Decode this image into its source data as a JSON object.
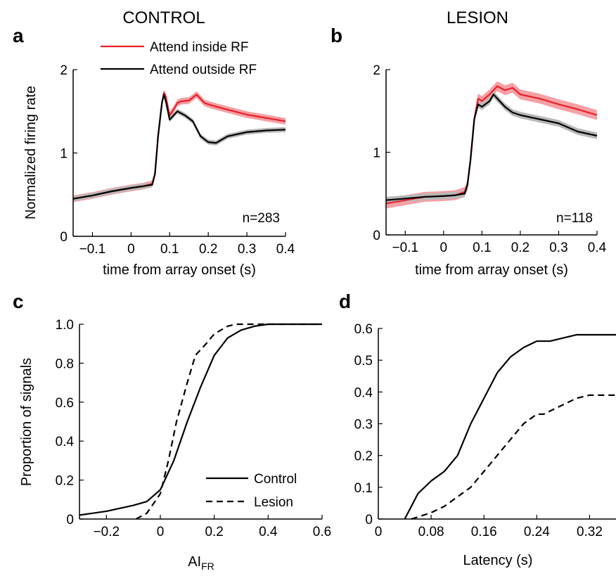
{
  "chart_data": [
    {
      "id": "a",
      "type": "line",
      "panel_label": "a",
      "title": "CONTROL",
      "xlabel": "time from array onset (s)",
      "ylabel": "Normalized firing rate",
      "xlim": [
        -0.15,
        0.4
      ],
      "ylim": [
        0,
        2
      ],
      "xticks": [
        -0.1,
        0,
        0.1,
        0.2,
        0.3,
        0.4
      ],
      "xtick_labels": [
        "−0.1",
        "0",
        "0.1",
        "0.2",
        "0.3",
        "0.4"
      ],
      "yticks": [
        0,
        1,
        2
      ],
      "ytick_labels": [
        "0",
        "1",
        "2"
      ],
      "annotation": "n=283",
      "legend_position": "top-right",
      "series": [
        {
          "name": "Attend inside RF",
          "color": "#e8202a",
          "band_color": "#f4a0a4",
          "band": 0.04,
          "x": [
            -0.15,
            -0.1,
            -0.05,
            0,
            0.03,
            0.055,
            0.062,
            0.07,
            0.08,
            0.085,
            0.09,
            0.1,
            0.11,
            0.12,
            0.13,
            0.15,
            0.17,
            0.19,
            0.21,
            0.25,
            0.3,
            0.35,
            0.4
          ],
          "y": [
            0.45,
            0.49,
            0.54,
            0.58,
            0.6,
            0.63,
            0.75,
            1.2,
            1.6,
            1.72,
            1.68,
            1.45,
            1.52,
            1.6,
            1.62,
            1.63,
            1.7,
            1.6,
            1.57,
            1.52,
            1.46,
            1.42,
            1.38
          ]
        },
        {
          "name": "Attend outside RF",
          "color": "#000000",
          "band_color": "#b8b8b8",
          "band": 0.03,
          "x": [
            -0.15,
            -0.1,
            -0.05,
            0,
            0.03,
            0.055,
            0.062,
            0.07,
            0.08,
            0.085,
            0.09,
            0.1,
            0.11,
            0.12,
            0.14,
            0.16,
            0.18,
            0.2,
            0.22,
            0.25,
            0.3,
            0.35,
            0.4
          ],
          "y": [
            0.45,
            0.49,
            0.54,
            0.58,
            0.6,
            0.62,
            0.75,
            1.2,
            1.6,
            1.7,
            1.62,
            1.4,
            1.45,
            1.5,
            1.45,
            1.38,
            1.2,
            1.13,
            1.12,
            1.2,
            1.25,
            1.27,
            1.28
          ]
        }
      ]
    },
    {
      "id": "b",
      "type": "line",
      "panel_label": "b",
      "title": "LESION",
      "xlabel": "time from array onset (s)",
      "ylabel": "",
      "xlim": [
        -0.15,
        0.4
      ],
      "ylim": [
        0,
        2
      ],
      "xticks": [
        -0.1,
        0,
        0.1,
        0.2,
        0.3,
        0.4
      ],
      "xtick_labels": [
        "−0.1",
        "0",
        "0.1",
        "0.2",
        "0.3",
        "0.4"
      ],
      "yticks": [
        0,
        1,
        2
      ],
      "ytick_labels": [
        "0",
        "1",
        "2"
      ],
      "annotation": "n=118",
      "series": [
        {
          "name": "Attend inside RF",
          "color": "#e8202a",
          "band_color": "#f4a0a4",
          "band": 0.06,
          "x": [
            -0.15,
            -0.1,
            -0.05,
            0,
            0.03,
            0.055,
            0.062,
            0.07,
            0.08,
            0.09,
            0.1,
            0.12,
            0.14,
            0.16,
            0.18,
            0.2,
            0.25,
            0.3,
            0.35,
            0.4
          ],
          "y": [
            0.38,
            0.42,
            0.46,
            0.47,
            0.48,
            0.52,
            0.6,
            0.9,
            1.4,
            1.65,
            1.62,
            1.7,
            1.8,
            1.75,
            1.78,
            1.7,
            1.65,
            1.58,
            1.52,
            1.45
          ]
        },
        {
          "name": "Attend outside RF",
          "color": "#000000",
          "band_color": "#b8b8b8",
          "band": 0.04,
          "x": [
            -0.15,
            -0.1,
            -0.05,
            0,
            0.03,
            0.055,
            0.062,
            0.07,
            0.08,
            0.09,
            0.1,
            0.12,
            0.13,
            0.14,
            0.16,
            0.18,
            0.2,
            0.25,
            0.3,
            0.35,
            0.4
          ],
          "y": [
            0.42,
            0.44,
            0.46,
            0.47,
            0.48,
            0.5,
            0.6,
            0.9,
            1.4,
            1.58,
            1.55,
            1.62,
            1.7,
            1.65,
            1.55,
            1.48,
            1.45,
            1.4,
            1.35,
            1.25,
            1.2
          ]
        }
      ]
    },
    {
      "id": "c",
      "type": "line",
      "panel_label": "c",
      "title": "",
      "xlabel": "AI",
      "xlabel_sub": "FR",
      "ylabel": "Proportion of signals",
      "xlim": [
        -0.3,
        0.6
      ],
      "ylim": [
        0,
        1
      ],
      "xticks": [
        -0.2,
        0,
        0.2,
        0.4,
        0.6
      ],
      "xtick_labels": [
        "−0.2",
        "0",
        "0.2",
        "0.4",
        "0.6"
      ],
      "yticks": [
        0,
        0.2,
        0.4,
        0.6,
        0.8,
        1.0
      ],
      "ytick_labels": [
        "0",
        "0.2",
        "0.4",
        "0.6",
        "0.8",
        "1.0"
      ],
      "legend_position": "bottom-right",
      "series": [
        {
          "name": "Control",
          "dash": "solid",
          "x": [
            -0.3,
            -0.2,
            -0.1,
            -0.05,
            0,
            0.05,
            0.1,
            0.15,
            0.2,
            0.25,
            0.3,
            0.35,
            0.4,
            0.45,
            0.6
          ],
          "y": [
            0.02,
            0.04,
            0.07,
            0.09,
            0.15,
            0.3,
            0.5,
            0.68,
            0.84,
            0.93,
            0.97,
            0.99,
            1.0,
            1.0,
            1.0
          ]
        },
        {
          "name": "Lesion",
          "dash": "dashed",
          "x": [
            -0.09,
            -0.05,
            0,
            0.03,
            0.06,
            0.1,
            0.13,
            0.17,
            0.2,
            0.25,
            0.28,
            0.3,
            0.35,
            0.6
          ],
          "y": [
            0.0,
            0.03,
            0.13,
            0.3,
            0.5,
            0.7,
            0.84,
            0.9,
            0.95,
            0.99,
            1.0,
            1.0,
            1.0,
            1.0
          ]
        }
      ]
    },
    {
      "id": "d",
      "type": "line",
      "panel_label": "d",
      "title": "",
      "xlabel": "Latency (s)",
      "ylabel": "",
      "xlim": [
        0,
        0.36
      ],
      "ylim": [
        0,
        0.6
      ],
      "xticks": [
        0,
        0.08,
        0.16,
        0.24,
        0.32
      ],
      "xtick_labels": [
        "0",
        "0.08",
        "0.16",
        "0.24",
        "0.32"
      ],
      "yticks": [
        0,
        0.1,
        0.2,
        0.3,
        0.4,
        0.5,
        0.6
      ],
      "ytick_labels": [
        "0",
        "0.1",
        "0.2",
        "0.3",
        "0.4",
        "0.5",
        "0.6"
      ],
      "series": [
        {
          "name": "Control",
          "dash": "solid",
          "x": [
            0.04,
            0.06,
            0.08,
            0.1,
            0.12,
            0.14,
            0.16,
            0.18,
            0.2,
            0.22,
            0.24,
            0.26,
            0.28,
            0.3,
            0.32,
            0.36
          ],
          "y": [
            0.0,
            0.08,
            0.12,
            0.15,
            0.2,
            0.3,
            0.38,
            0.46,
            0.51,
            0.54,
            0.56,
            0.56,
            0.57,
            0.58,
            0.58,
            0.58
          ]
        },
        {
          "name": "Lesion",
          "dash": "dashed",
          "x": [
            0.05,
            0.08,
            0.1,
            0.12,
            0.14,
            0.16,
            0.18,
            0.2,
            0.22,
            0.24,
            0.25,
            0.27,
            0.3,
            0.32,
            0.36
          ],
          "y": [
            0.0,
            0.02,
            0.04,
            0.07,
            0.1,
            0.15,
            0.2,
            0.25,
            0.3,
            0.33,
            0.33,
            0.35,
            0.38,
            0.39,
            0.39
          ]
        }
      ]
    }
  ]
}
